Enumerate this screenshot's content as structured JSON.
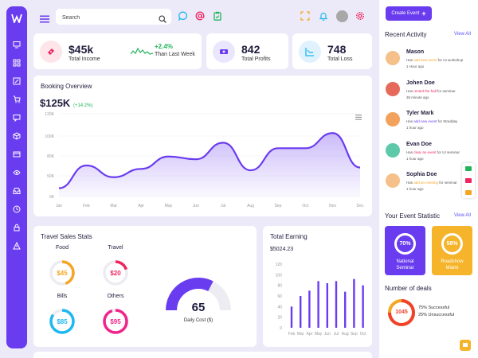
{
  "search": {
    "placeholder": "Search"
  },
  "stats": {
    "income": {
      "value": "$45k",
      "label": "Total Income",
      "trend": "+2.4%",
      "trend_label": "Than Last Week"
    },
    "profits": {
      "value": "842",
      "label": "Total Profits"
    },
    "loss": {
      "value": "748",
      "label": "Total Loss"
    }
  },
  "booking": {
    "title": "Booking Overview",
    "value": "$125K",
    "change": "(+14.2%)",
    "chart_data": {
      "type": "area",
      "x": [
        "Jan",
        "Feb",
        "Mar",
        "Apr",
        "May",
        "Jun",
        "Jul",
        "Aug",
        "Sep",
        "Oct",
        "Nov",
        "Dec"
      ],
      "y_ticks": [
        "0K",
        "50K",
        "80K",
        "100K",
        "120K"
      ],
      "values": [
        12,
        45,
        28,
        40,
        58,
        54,
        78,
        38,
        70,
        70,
        92,
        42
      ],
      "ylim": [
        0,
        120
      ],
      "color": "#6a3cf0"
    }
  },
  "travel": {
    "title": "Travel Sales Stats",
    "items": [
      {
        "label": "Food",
        "value": "$45",
        "color": "#f5a623",
        "pct": 0.45
      },
      {
        "label": "Travel",
        "value": "$20",
        "color": "#f0245e",
        "pct": 0.2
      },
      {
        "label": "Bills",
        "value": "$85",
        "color": "#1eb8f0",
        "pct": 0.85
      },
      {
        "label": "Others",
        "value": "$95",
        "color": "#f0248a",
        "pct": 0.95
      }
    ],
    "gauge": {
      "value": "65",
      "label": "Daily Cost ($)",
      "pct": 0.65
    }
  },
  "earning": {
    "title": "Total Earning",
    "value": "$5024.23",
    "chart_data": {
      "type": "bar",
      "categories": [
        "Feb",
        "Mar",
        "Apr",
        "May",
        "Jun",
        "Jul",
        "Aug",
        "Sep",
        "Oct"
      ],
      "values": [
        40,
        60,
        70,
        88,
        84,
        88,
        68,
        92,
        80
      ],
      "y_ticks": [
        "0",
        "20",
        "40",
        "60",
        "80",
        "100",
        "120"
      ],
      "ylim": [
        0,
        120
      ],
      "color": "#6a3cf0"
    }
  },
  "right_panel": {
    "create_button": "Create Event",
    "activity_title": "Recent Activity",
    "view_all": "View All",
    "activities": [
      {
        "name": "Mason",
        "pre": "Has ",
        "action": "add new event",
        "post": " for UI workshop",
        "time": "1 Hour ago",
        "action_color": "#f5a623",
        "avatar_color": "#f5c08a"
      },
      {
        "name": "Johen Doe",
        "pre": "Has ",
        "action": "rented the hall",
        "post": " for seminar",
        "time": "35 minute ago",
        "action_color": "#f0245e",
        "avatar_color": "#e66a5b"
      },
      {
        "name": "Tyler Mark",
        "pre": "Has ",
        "action": "add new event",
        "post": " for Stradday",
        "time": "1 hour ago",
        "action_color": "#6a3cf0",
        "avatar_color": "#f2a25c"
      },
      {
        "name": "Evan Doe",
        "pre": "Has ",
        "action": "clear an event",
        "post": " for UI seminar",
        "time": "1 hour ago",
        "action_color": "#f0245e",
        "avatar_color": "#5dc9a8"
      },
      {
        "name": "Sophia Doe",
        "pre": "Has ",
        "action": "add an evening",
        "post": " for seminar",
        "time": "1 hour ago",
        "action_color": "#f5a623",
        "avatar_color": "#f5c08a"
      }
    ],
    "event_title": "Your Event Statistic",
    "events": [
      {
        "pct": "70%",
        "label_line1": "National",
        "label_line2": "Seminar",
        "bg": "#6a3cf0"
      },
      {
        "pct": "58%",
        "label_line1": "Roadshow",
        "label_line2": "Miami",
        "bg": "#f5b42a"
      }
    ],
    "deals_title": "Number of deals",
    "deals": {
      "value": "1045",
      "successful": "75% Successful",
      "unsuccessful": "25% Unsuccessful"
    }
  }
}
